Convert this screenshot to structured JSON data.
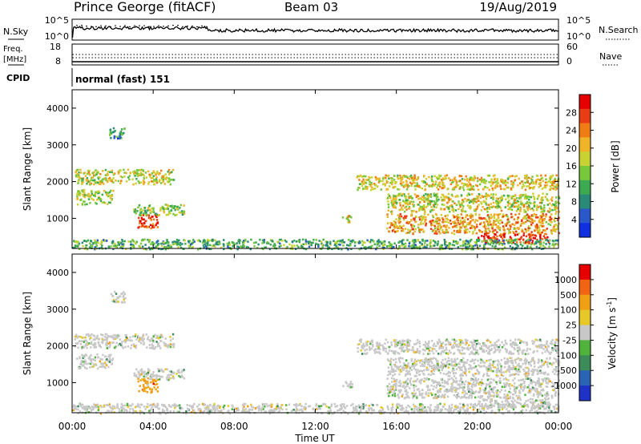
{
  "header": {
    "station": "Prince George (fitACF)",
    "beam": "Beam 03",
    "date": "19/Aug/2019",
    "cpid_label": "CPID",
    "cpid_value": "normal (fast) 151"
  },
  "strips": {
    "nsky_label": "N.Sky",
    "nsky_ticks": [
      "10^5",
      "10^0"
    ],
    "nsearch_label": "N.Search",
    "nsearch_ticks": [
      "10^5",
      "10^0"
    ],
    "freq_label": "Freq.",
    "freq_unit": "[MHz]",
    "freq_ticks": [
      "18",
      "8"
    ],
    "nave_label": "Nave",
    "nave_ticks": [
      "60",
      "0"
    ]
  },
  "chart_data": [
    {
      "type": "heatmap",
      "name": "power",
      "ylabel": "Slant Range [km]",
      "xlabel": "",
      "xlim": [
        0,
        24
      ],
      "ylim": [
        180,
        4500
      ],
      "x_ticks": [
        0,
        4,
        8,
        12,
        16,
        20,
        24
      ],
      "y_ticks": [
        1000,
        2000,
        3000,
        4000
      ],
      "colorbar": {
        "label": "Power [dB]",
        "ticks": [
          "4",
          "8",
          "12",
          "16",
          "20",
          "24",
          "28"
        ],
        "colors": [
          "#1030e0",
          "#2a58c8",
          "#2a8a78",
          "#3caa50",
          "#78c83c",
          "#c8d232",
          "#f0b428",
          "#f07c14",
          "#e83c14",
          "#e60000"
        ]
      },
      "regions": [
        {
          "t": [
            0.1,
            5.0
          ],
          "r": [
            1950,
            2350
          ],
          "level": 0.55
        },
        {
          "t": [
            0.2,
            2.0
          ],
          "r": [
            1400,
            1800
          ],
          "level": 0.5
        },
        {
          "t": [
            1.8,
            2.6
          ],
          "r": [
            3200,
            3500
          ],
          "level": 0.25
        },
        {
          "t": [
            3.2,
            4.2
          ],
          "r": [
            750,
            1150
          ],
          "level": 0.9
        },
        {
          "t": [
            3.0,
            5.5
          ],
          "r": [
            1100,
            1400
          ],
          "level": 0.45
        },
        {
          "t": [
            13.3,
            13.8
          ],
          "r": [
            900,
            1100
          ],
          "level": 0.6
        },
        {
          "t": [
            14.0,
            24.0
          ],
          "r": [
            1800,
            2200
          ],
          "level": 0.6
        },
        {
          "t": [
            15.5,
            24.0
          ],
          "r": [
            1200,
            1700
          ],
          "level": 0.55
        },
        {
          "t": [
            15.5,
            24.0
          ],
          "r": [
            600,
            1150
          ],
          "level": 0.7
        },
        {
          "t": [
            20.0,
            23.5
          ],
          "r": [
            350,
            600
          ],
          "level": 0.95
        },
        {
          "t": [
            0.0,
            24.0
          ],
          "r": [
            180,
            450
          ],
          "level": 0.35
        }
      ]
    },
    {
      "type": "heatmap",
      "name": "velocity",
      "ylabel": "Slant Range [km]",
      "xlabel": "Time UT",
      "xlim": [
        0,
        24
      ],
      "ylim": [
        180,
        4500
      ],
      "x_ticks": [
        0,
        4,
        8,
        12,
        16,
        20,
        24
      ],
      "x_tick_labels": [
        "00:00",
        "04:00",
        "08:00",
        "12:00",
        "16:00",
        "20:00",
        "00:00"
      ],
      "y_ticks": [
        1000,
        2000,
        3000,
        4000
      ],
      "colorbar": {
        "label": "Velocity [m s",
        "label_sup": "-1",
        "label_end": "]",
        "ticks": [
          "1000",
          "500",
          "100",
          "25",
          "-25",
          "-100",
          "-500",
          "-1000"
        ],
        "colors": [
          "#1e32c8",
          "#2a64b4",
          "#3c8c5a",
          "#50b43c",
          "#c8c8c8",
          "#e6c828",
          "#f0a014",
          "#f06414",
          "#e60000"
        ]
      },
      "regions": [
        {
          "t": [
            0.1,
            5.0
          ],
          "r": [
            1950,
            2350
          ],
          "level": 0.5
        },
        {
          "t": [
            0.2,
            2.0
          ],
          "r": [
            1400,
            1800
          ],
          "level": 0.5
        },
        {
          "t": [
            1.8,
            2.6
          ],
          "r": [
            3200,
            3500
          ],
          "level": 0.55
        },
        {
          "t": [
            3.2,
            4.2
          ],
          "r": [
            750,
            1150
          ],
          "level": 0.8
        },
        {
          "t": [
            3.0,
            5.5
          ],
          "r": [
            1100,
            1400
          ],
          "level": 0.5
        },
        {
          "t": [
            13.3,
            13.8
          ],
          "r": [
            900,
            1100
          ],
          "level": 0.5
        },
        {
          "t": [
            14.0,
            24.0
          ],
          "r": [
            1800,
            2200
          ],
          "level": 0.5
        },
        {
          "t": [
            15.5,
            24.0
          ],
          "r": [
            1200,
            1700
          ],
          "level": 0.5
        },
        {
          "t": [
            15.5,
            24.0
          ],
          "r": [
            600,
            1150
          ],
          "level": 0.5
        },
        {
          "t": [
            20.0,
            23.5
          ],
          "r": [
            350,
            600
          ],
          "level": 0.5
        },
        {
          "t": [
            0.0,
            24.0
          ],
          "r": [
            180,
            450
          ],
          "level": 0.45
        }
      ]
    }
  ]
}
